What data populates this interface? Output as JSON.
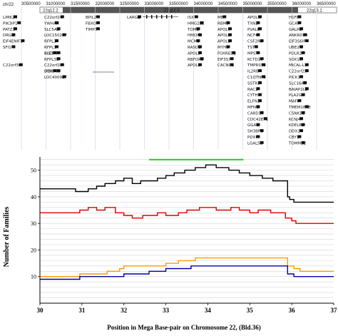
{
  "browser": {
    "chrom_label": "chr22:",
    "coords": [
      "30500000",
      "31000000",
      "31500000",
      "32000000",
      "32500000",
      "33000000",
      "33500000",
      "34000000",
      "34500000",
      "35000000",
      "35500000",
      "36000000",
      "36500000"
    ],
    "bands": [
      "22q12.2",
      "22q12.3",
      "22q13.1"
    ],
    "gene_labels": [
      {
        "name": "LIMK2",
        "col": 0,
        "row": 0
      },
      {
        "name": "PIK3IP1",
        "col": 0,
        "row": 1
      },
      {
        "name": "PATZ1",
        "col": 0,
        "row": 2
      },
      {
        "name": "DRG1",
        "col": 0,
        "row": 3
      },
      {
        "name": "EIF4ENIF1",
        "col": 0,
        "row": 4
      },
      {
        "name": "SFI1",
        "col": 0,
        "row": 5
      },
      {
        "name": "C22orf30",
        "col": 0,
        "row": 8
      },
      {
        "name": "C22orf24",
        "col": 1,
        "row": 0
      },
      {
        "name": "YWHAH",
        "col": 1,
        "row": 1
      },
      {
        "name": "SLC5A1",
        "col": 1,
        "row": 2
      },
      {
        "name": "LOC150297",
        "col": 1,
        "row": 3
      },
      {
        "name": "RFPL2",
        "col": 1,
        "row": 4
      },
      {
        "name": "RFPL3",
        "col": 1,
        "row": 5
      },
      {
        "name": "PISD",
        "col": 1,
        "row": 6
      },
      {
        "name": "SLC5A4",
        "col": 1,
        "row": 6
      },
      {
        "name": "RFPL3S",
        "col": 1,
        "row": 7
      },
      {
        "name": "C22orf28",
        "col": 1,
        "row": 8
      },
      {
        "name": "DEPDC5",
        "col": 1,
        "row": 9
      },
      {
        "name": "SYN3",
        "col": 1,
        "row": 9
      },
      {
        "name": "LOC400927",
        "col": 1,
        "row": 10
      },
      {
        "name": "BPIL2",
        "col": 2,
        "row": 0
      },
      {
        "name": "FBXO7",
        "col": 2,
        "row": 1
      },
      {
        "name": "TIMP3",
        "col": 2,
        "row": 2
      },
      {
        "name": "LARGE",
        "col": 3,
        "row": 0
      },
      {
        "name": "ISX",
        "col": 4,
        "row": 0
      },
      {
        "name": "HMG2L1",
        "col": 4,
        "row": 1
      },
      {
        "name": "TOM1",
        "col": 4,
        "row": 2
      },
      {
        "name": "HMOX1",
        "col": 4,
        "row": 3
      },
      {
        "name": "MCM5",
        "col": 4,
        "row": 4
      },
      {
        "name": "RASD2",
        "col": 4,
        "row": 5
      },
      {
        "name": "APOL5",
        "col": 4,
        "row": 6
      },
      {
        "name": "RBFOX2",
        "col": 4,
        "row": 7
      },
      {
        "name": "APOL3",
        "col": 4,
        "row": 8
      },
      {
        "name": "MB",
        "col": 5,
        "row": 0
      },
      {
        "name": "RBM9",
        "col": 5,
        "row": 1
      },
      {
        "name": "APOL4",
        "col": 5,
        "row": 2
      },
      {
        "name": "APOL2",
        "col": 5,
        "row": 3
      },
      {
        "name": "APOL1",
        "col": 5,
        "row": 4
      },
      {
        "name": "MYH9",
        "col": 5,
        "row": 5
      },
      {
        "name": "FOXRED2",
        "col": 5,
        "row": 6
      },
      {
        "name": "EIF3S7",
        "col": 5,
        "row": 7
      },
      {
        "name": "CACNG2",
        "col": 5,
        "row": 8
      },
      {
        "name": "APOL6",
        "col": 6,
        "row": 0
      },
      {
        "name": "TXN2",
        "col": 6,
        "row": 1
      },
      {
        "name": "PVALB",
        "col": 6,
        "row": 2
      },
      {
        "name": "NCF4",
        "col": 6,
        "row": 3
      },
      {
        "name": "CSF2RB",
        "col": 6,
        "row": 4
      },
      {
        "name": "TST",
        "col": 6,
        "row": 5
      },
      {
        "name": "MPST",
        "col": 6,
        "row": 6
      },
      {
        "name": "KCTD17",
        "col": 6,
        "row": 7
      },
      {
        "name": "TMPRSS6",
        "col": 6,
        "row": 8
      },
      {
        "name": "IL2RB",
        "col": 6,
        "row": 9
      },
      {
        "name": "C1QTNF6",
        "col": 6,
        "row": 10
      },
      {
        "name": "SSTR3",
        "col": 6,
        "row": 11
      },
      {
        "name": "RAC2",
        "col": 6,
        "row": 12
      },
      {
        "name": "CYTH4",
        "col": 6,
        "row": 13
      },
      {
        "name": "ELFN2",
        "col": 6,
        "row": 14
      },
      {
        "name": "MFNG",
        "col": 6,
        "row": 15
      },
      {
        "name": "CARD10",
        "col": 6,
        "row": 16
      },
      {
        "name": "CDC42EP1",
        "col": 6,
        "row": 17
      },
      {
        "name": "GGA1",
        "col": 6,
        "row": 18
      },
      {
        "name": "SH3BP1",
        "col": 6,
        "row": 19
      },
      {
        "name": "PDXP",
        "col": 6,
        "row": 20
      },
      {
        "name": "LGALS1",
        "col": 6,
        "row": 21
      },
      {
        "name": "NOL12",
        "col": 6,
        "row": 22
      },
      {
        "name": "TRIOBP",
        "col": 6,
        "row": 23
      },
      {
        "name": "H1F0",
        "col": 7,
        "row": 0
      },
      {
        "name": "GCAT",
        "col": 7,
        "row": 1
      },
      {
        "name": "GALR3",
        "col": 7,
        "row": 2
      },
      {
        "name": "ANKRD54",
        "col": 7,
        "row": 3
      },
      {
        "name": "EIF3S6IP",
        "col": 7,
        "row": 4
      },
      {
        "name": "UBE2N",
        "col": 7,
        "row": 5
      },
      {
        "name": "POLR2F",
        "col": 7,
        "row": 6
      },
      {
        "name": "SOX10",
        "col": 7,
        "row": 7
      },
      {
        "name": "MICAL-L1",
        "col": 7,
        "row": 8
      },
      {
        "name": "C22orf23",
        "col": 7,
        "row": 9
      },
      {
        "name": "PICK1",
        "col": 7,
        "row": 10
      },
      {
        "name": "SLC16A8",
        "col": 7,
        "row": 11
      },
      {
        "name": "BAIAP2L2",
        "col": 7,
        "row": 12
      },
      {
        "name": "PLA2G6",
        "col": 7,
        "row": 13
      },
      {
        "name": "MAFF",
        "col": 7,
        "row": 14
      },
      {
        "name": "TMEM184B",
        "col": 7,
        "row": 15
      },
      {
        "name": "CSNK1E",
        "col": 7,
        "row": 16
      },
      {
        "name": "KCNJ4",
        "col": 7,
        "row": 17
      },
      {
        "name": "KDELR3",
        "col": 7,
        "row": 18
      },
      {
        "name": "DDX17",
        "col": 7,
        "row": 19
      },
      {
        "name": "CBY1",
        "col": 7,
        "row": 20
      },
      {
        "name": "TOMM22",
        "col": 7,
        "row": 21
      },
      {
        "name": "JOSD1",
        "col": 7,
        "row": 22
      },
      {
        "name": "GTPBP1",
        "col": 7,
        "row": 23
      }
    ]
  },
  "chart_data": {
    "type": "line",
    "xlabel": "Position in Mega Base-pair on Chromosome 22, (Bld.36)",
    "ylabel": "Number of Families",
    "xlim": [
      30,
      37
    ],
    "ylim": [
      0,
      55
    ],
    "x_ticks": [
      "30",
      "31",
      "32",
      "33",
      "34",
      "35",
      "36",
      "37"
    ],
    "y_ticks": [
      "10",
      "20",
      "30",
      "40",
      "50"
    ],
    "grid": "horizontal",
    "highlight_segment": {
      "x": [
        32.6,
        34.85
      ],
      "y": 54,
      "color": "#22cc22"
    },
    "series": [
      {
        "color": "#000000",
        "x": [
          30.0,
          30.85,
          30.85,
          31.15,
          31.15,
          31.35,
          31.35,
          31.55,
          31.55,
          31.8,
          31.8,
          32.0,
          32.0,
          32.2,
          32.2,
          32.4,
          32.4,
          32.8,
          32.8,
          33.0,
          33.0,
          33.2,
          33.2,
          33.45,
          33.45,
          33.7,
          33.7,
          33.95,
          33.95,
          34.2,
          34.2,
          34.5,
          34.5,
          34.75,
          34.75,
          35.0,
          35.0,
          35.3,
          35.3,
          35.55,
          35.55,
          35.9,
          35.9,
          35.95,
          35.95,
          36.05,
          36.05,
          37.0
        ],
        "y": [
          43,
          43,
          42,
          42,
          43,
          43,
          44,
          44,
          45,
          45,
          46,
          46,
          47,
          47,
          45,
          45,
          46,
          46,
          47,
          47,
          48,
          48,
          49,
          49,
          50,
          50,
          51,
          51,
          52,
          52,
          51,
          51,
          50,
          50,
          49,
          49,
          48,
          48,
          47,
          47,
          46,
          46,
          40,
          40,
          39,
          39,
          38,
          38
        ]
      },
      {
        "color": "#dd0000",
        "x": [
          30.0,
          30.95,
          30.95,
          31.15,
          31.15,
          31.35,
          31.35,
          31.55,
          31.55,
          31.8,
          31.8,
          32.0,
          32.0,
          32.2,
          32.2,
          32.45,
          32.45,
          32.8,
          32.8,
          33.0,
          33.0,
          33.3,
          33.3,
          33.5,
          33.5,
          33.8,
          33.8,
          34.2,
          34.2,
          34.55,
          34.55,
          34.75,
          34.75,
          35.0,
          35.0,
          35.2,
          35.2,
          35.5,
          35.5,
          35.85,
          35.85,
          36.0,
          36.0,
          36.1,
          36.1,
          37.0
        ],
        "y": [
          34,
          34,
          35,
          35,
          36,
          36,
          35,
          35,
          36,
          36,
          34,
          34,
          33,
          33,
          32,
          32,
          33,
          33,
          34,
          34,
          33,
          33,
          34,
          34,
          35,
          35,
          36,
          36,
          35,
          35,
          36,
          36,
          35,
          35,
          34,
          34,
          35,
          35,
          34,
          34,
          32,
          32,
          31,
          31,
          30,
          30
        ]
      },
      {
        "color": "#ff9900",
        "x": [
          30.0,
          30.95,
          30.95,
          31.6,
          31.6,
          31.9,
          31.9,
          32.0,
          32.0,
          33.0,
          33.0,
          33.3,
          33.3,
          33.7,
          33.7,
          35.9,
          35.9,
          36.05,
          36.05,
          36.2,
          36.2,
          37.0
        ],
        "y": [
          10,
          10,
          11,
          11,
          12,
          12,
          13,
          13,
          14,
          14,
          15,
          15,
          16,
          16,
          17,
          17,
          14,
          14,
          13,
          13,
          12,
          12
        ]
      },
      {
        "color": "#0000aa",
        "x": [
          30.0,
          30.95,
          30.95,
          31.6,
          31.6,
          32.0,
          32.0,
          32.6,
          32.6,
          33.0,
          33.0,
          33.3,
          33.3,
          33.6,
          33.6,
          35.9,
          35.9,
          36.05,
          36.05,
          37.0
        ],
        "y": [
          9,
          9,
          10,
          10,
          10,
          10,
          11,
          11,
          12,
          12,
          13,
          13,
          13,
          13,
          14,
          14,
          11,
          11,
          10,
          10
        ]
      }
    ]
  }
}
